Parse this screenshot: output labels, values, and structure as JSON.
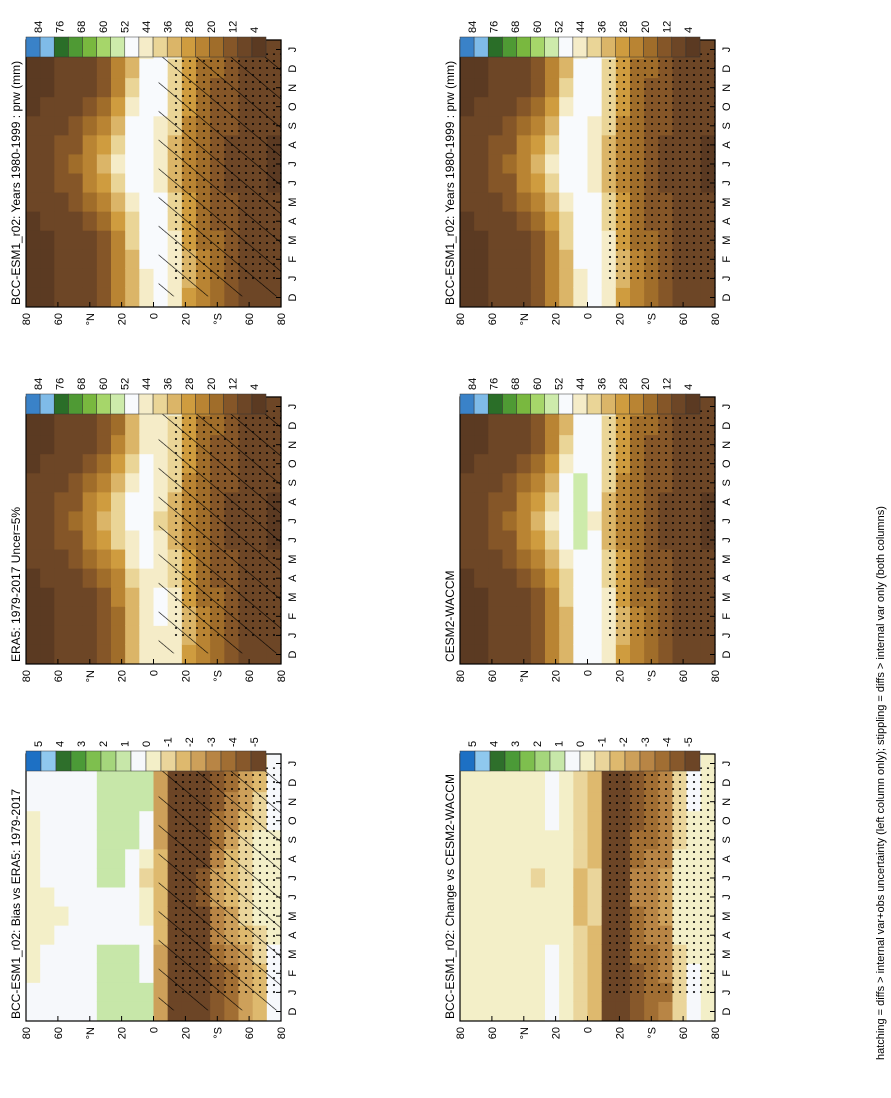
{
  "footer_caption": "hatching = diffs > internal var+obs uncertainty (left column only); stippling = diffs > internal var only (both columns)",
  "colors": {
    "abs_scale": [
      "#3a82c8",
      "#7fbbe8",
      "#2a6e28",
      "#4f9a34",
      "#79b83f",
      "#a6d66a",
      "#cdebab",
      "#f8fafd",
      "#f5ecc8",
      "#ead597",
      "#dbb568",
      "#cf9c3f",
      "#b98433",
      "#a06d2a",
      "#855628",
      "#6d4626",
      "#5b3a22"
    ],
    "diff_scale": [
      "#1d70c4",
      "#8fc8ee",
      "#2e6f2b",
      "#4b9a37",
      "#7ebf4e",
      "#a5d67c",
      "#c7e7a9",
      "#f6f8fb",
      "#f3efc8",
      "#ead59b",
      "#deb96e",
      "#cda05a",
      "#b88545",
      "#a16e33",
      "#87582b",
      "#6c4526"
    ]
  },
  "panels": [
    {
      "id": "model-bcc",
      "title": "BCC-ESM1_r02: Years 1980-1999 : prw (mm)",
      "kind": "abs",
      "hatching": true
    },
    {
      "id": "obs-era5",
      "title": "ERA5: 1979-2017 Uncer=5%",
      "kind": "abs",
      "hatching": true
    },
    {
      "id": "bias-era5",
      "title": "BCC-ESM1_r02: Bias vs ERA5: 1979-2017",
      "kind": "diff",
      "hatching": true
    },
    {
      "id": "model-bcc-right",
      "title": "BCC-ESM1_r02: Years 1980-1999 : prw (mm)",
      "kind": "abs",
      "hatching": false
    },
    {
      "id": "ref-cesm",
      "title": "CESM2-WACCM",
      "kind": "abs",
      "hatching": false
    },
    {
      "id": "change-cesm",
      "title": "BCC-ESM1_r02: Change vs CESM2-WACCM",
      "kind": "diff",
      "hatching": false
    }
  ],
  "chart_data": {
    "type": "heatmap",
    "variable": "prw (mm)",
    "x_ticks": [
      "D",
      "J",
      "F",
      "M",
      "A",
      "M",
      "J",
      "J",
      "A",
      "S",
      "O",
      "N",
      "D",
      "J"
    ],
    "y_ticks": [
      "80",
      "60",
      "°N",
      "20",
      "0",
      "20",
      "°S",
      "60",
      "80"
    ],
    "y_values_deg": [
      80,
      60,
      40,
      20,
      0,
      -20,
      -40,
      -60,
      -80
    ],
    "abs_colorbar": {
      "labels": [
        "84",
        "76",
        "68",
        "60",
        "52",
        "44",
        "36",
        "28",
        "20",
        "12",
        "4"
      ],
      "range": [
        0,
        88
      ]
    },
    "diff_colorbar": {
      "labels": [
        "5",
        "4",
        "3",
        "2",
        "1",
        "0",
        "-1",
        "-2",
        "-3",
        "-4",
        "-5"
      ],
      "range": [
        -5,
        5
      ]
    },
    "months": [
      "D",
      "J",
      "F",
      "M",
      "A",
      "M",
      "J",
      "J",
      "A",
      "S",
      "O",
      "N",
      "D",
      "J"
    ],
    "latitudes": [
      -85,
      -75,
      -65,
      -55,
      -45,
      -35,
      -25,
      -15,
      -5,
      5,
      15,
      25,
      35,
      45,
      55,
      65,
      75,
      85
    ],
    "model_mean_mm": [
      [
        3,
        3,
        3,
        3,
        3,
        3,
        2,
        2,
        2,
        3,
        3,
        3,
        3,
        3
      ],
      [
        5,
        5,
        5,
        5,
        4,
        4,
        4,
        4,
        4,
        4,
        5,
        5,
        5,
        5
      ],
      [
        8,
        8,
        8,
        7,
        7,
        6,
        6,
        6,
        6,
        6,
        7,
        7,
        8,
        8
      ],
      [
        11,
        11,
        11,
        10,
        10,
        9,
        8,
        8,
        8,
        9,
        10,
        10,
        11,
        11
      ],
      [
        14,
        14,
        14,
        14,
        13,
        12,
        11,
        11,
        11,
        12,
        13,
        13,
        14,
        14
      ],
      [
        20,
        20,
        20,
        19,
        18,
        16,
        15,
        15,
        15,
        16,
        17,
        18,
        19,
        20
      ],
      [
        30,
        31,
        31,
        30,
        28,
        26,
        24,
        23,
        23,
        24,
        26,
        28,
        29,
        30
      ],
      [
        42,
        43,
        44,
        43,
        41,
        38,
        35,
        34,
        34,
        36,
        38,
        40,
        41,
        42
      ],
      [
        48,
        49,
        50,
        50,
        49,
        47,
        45,
        44,
        45,
        46,
        47,
        48,
        48,
        48
      ],
      [
        46,
        46,
        47,
        48,
        49,
        50,
        51,
        51,
        51,
        51,
        50,
        48,
        47,
        46
      ],
      [
        34,
        34,
        35,
        37,
        40,
        45,
        49,
        51,
        50,
        47,
        42,
        38,
        35,
        34
      ],
      [
        20,
        20,
        21,
        23,
        27,
        33,
        40,
        43,
        41,
        35,
        28,
        23,
        21,
        20
      ],
      [
        11,
        11,
        12,
        13,
        16,
        22,
        30,
        33,
        30,
        24,
        17,
        13,
        12,
        11
      ],
      [
        7,
        7,
        7,
        8,
        10,
        14,
        20,
        23,
        20,
        15,
        11,
        8,
        7,
        7
      ],
      [
        4,
        4,
        4,
        5,
        6,
        9,
        13,
        15,
        13,
        10,
        7,
        5,
        4,
        4
      ],
      [
        3,
        3,
        3,
        3,
        4,
        6,
        9,
        10,
        9,
        6,
        4,
        3,
        3,
        3
      ],
      [
        2,
        2,
        2,
        2,
        3,
        4,
        6,
        7,
        6,
        4,
        3,
        2,
        2,
        2
      ],
      [
        1,
        1,
        1,
        2,
        2,
        3,
        4,
        5,
        4,
        3,
        2,
        1,
        1,
        1
      ]
    ],
    "bias_mm": [
      [
        0.3,
        0.3,
        0.2,
        0.1,
        0,
        0,
        0,
        0,
        0,
        0,
        0.1,
        0.2,
        0.3,
        0.3
      ],
      [
        -1.5,
        -1.6,
        -1.4,
        -1,
        -0.8,
        -0.5,
        -0.4,
        -0.3,
        -0.4,
        -0.6,
        -0.9,
        -1.2,
        -1.5,
        -1.5
      ],
      [
        -2.5,
        -2.6,
        -2.4,
        -2,
        -1.6,
        -1.2,
        -1,
        -0.9,
        -1,
        -1.3,
        -1.8,
        -2.2,
        -2.5,
        -2.5
      ],
      [
        -3.5,
        -3.8,
        -3.6,
        -3,
        -2.5,
        -2,
        -1.7,
        -1.6,
        -1.8,
        -2.2,
        -2.8,
        -3.3,
        -3.6,
        -3.5
      ],
      [
        -4,
        -4.3,
        -4.2,
        -3.8,
        -3.2,
        -2.8,
        -2.5,
        -2.6,
        -3,
        -3.4,
        -3.8,
        -4,
        -4.1,
        -4
      ],
      [
        -5.5,
        -5.6,
        -5.5,
        -5.2,
        -5,
        -4.8,
        -4.6,
        -4.6,
        -4.9,
        -5.2,
        -5.5,
        -5.6,
        -5.6,
        -5.5
      ],
      [
        -6,
        -6.2,
        -6.1,
        -5.9,
        -5.7,
        -5.6,
        -5.5,
        -5.5,
        -5.8,
        -6,
        -6.2,
        -6.3,
        -6.2,
        -6
      ],
      [
        -5.8,
        -6,
        -5.9,
        -5.6,
        -5.4,
        -5.3,
        -5.2,
        -5.3,
        -5.6,
        -5.9,
        -6,
        -6.1,
        -6,
        -5.8
      ],
      [
        -2,
        -2.2,
        -2.2,
        -2,
        -1.7,
        -1.5,
        -1.4,
        -1.5,
        -1.8,
        -2,
        -2.1,
        -2.1,
        -2.1,
        -2
      ],
      [
        0.8,
        0.7,
        0.6,
        0.5,
        0.4,
        -0.3,
        -0.6,
        -0.7,
        -0.4,
        0.3,
        0.6,
        0.8,
        0.8,
        0.8
      ],
      [
        1.2,
        1.1,
        1,
        0.9,
        0.6,
        0.4,
        0.3,
        0.3,
        0.5,
        0.8,
        1,
        1.2,
        1.2,
        1.2
      ],
      [
        1,
        1,
        0.9,
        0.8,
        0.6,
        0.5,
        0.6,
        0.8,
        0.9,
        1,
        1.1,
        1.1,
        1,
        1
      ],
      [
        0.9,
        0.9,
        0.8,
        0.7,
        0.6,
        0.5,
        0.6,
        0.7,
        0.8,
        0.9,
        1,
        1,
        0.9,
        0.9
      ],
      [
        0.6,
        0.6,
        0.5,
        0.4,
        0.3,
        0.2,
        0.4,
        0.6,
        0.6,
        0.5,
        0.5,
        0.6,
        0.6,
        0.6
      ],
      [
        0.5,
        0.5,
        0.4,
        0.3,
        0.2,
        0.1,
        0.2,
        0.4,
        0.4,
        0.3,
        0.4,
        0.5,
        0.5,
        0.5
      ],
      [
        0.3,
        0.3,
        0.2,
        0.2,
        0.1,
        0,
        0.1,
        0.2,
        0.2,
        0.2,
        0.2,
        0.3,
        0.3,
        0.3
      ],
      [
        0.2,
        0.2,
        0.1,
        0.1,
        0,
        0,
        0,
        0.1,
        0.1,
        0.1,
        0.1,
        0.2,
        0.2,
        0.2
      ],
      [
        0.1,
        0.1,
        0,
        0,
        0,
        0,
        0,
        0,
        0,
        0,
        0,
        0.1,
        0.1,
        0.1
      ]
    ],
    "change_mm": [
      [
        0,
        0,
        0,
        0,
        0,
        0,
        0,
        0,
        0,
        0,
        0,
        0,
        0,
        0
      ],
      [
        0.1,
        0.1,
        0.1,
        0,
        0,
        0,
        0,
        0,
        0,
        0,
        0,
        0.1,
        0.1,
        0.1
      ],
      [
        -0.8,
        -0.9,
        -0.8,
        -0.7,
        -0.6,
        -0.5,
        -0.5,
        -0.5,
        -0.6,
        -0.7,
        -0.8,
        -0.8,
        -0.8,
        -0.8
      ],
      [
        -3.2,
        -3.4,
        -3.3,
        -3,
        -2.8,
        -2.6,
        -2.5,
        -2.5,
        -2.7,
        -3,
        -3.2,
        -3.3,
        -3.3,
        -3.2
      ],
      [
        -3.6,
        -3.8,
        -3.7,
        -3.4,
        -3.2,
        -3,
        -2.9,
        -2.9,
        -3.1,
        -3.4,
        -3.6,
        -3.7,
        -3.7,
        -3.6
      ],
      [
        -4,
        -4.1,
        -4,
        -3.8,
        -3.6,
        -3.4,
        -3.3,
        -3.3,
        -3.5,
        -3.8,
        -4,
        -4.1,
        -4.1,
        -4
      ],
      [
        -6,
        -6.1,
        -6,
        -5.9,
        -5.8,
        -5.7,
        -5.6,
        -5.6,
        -5.8,
        -5.9,
        -6,
        -6.1,
        -6.1,
        -6
      ],
      [
        -6.2,
        -6.3,
        -6.2,
        -6,
        -5.9,
        -5.8,
        -5.7,
        -5.7,
        -5.9,
        -6,
        -6.2,
        -6.3,
        -6.3,
        -6.2
      ],
      [
        -1.5,
        -1.6,
        -1.6,
        -1.5,
        -1.4,
        -1.3,
        -1.2,
        -1.2,
        -1.4,
        -1.5,
        -1.6,
        -1.6,
        -1.6,
        -1.5
      ],
      [
        -1.2,
        -1.1,
        -1,
        -0.9,
        -1,
        -1.4,
        -1.8,
        -1.7,
        -1.3,
        -1,
        -1,
        -1.1,
        -1.2,
        -1.2
      ],
      [
        -0.3,
        -0.3,
        -0.2,
        -0.2,
        -0.3,
        -0.4,
        -0.5,
        -0.5,
        -0.4,
        -0.3,
        -0.3,
        -0.3,
        -0.3,
        -0.3
      ],
      [
        0.2,
        0.2,
        0.1,
        0.1,
        0,
        -0.2,
        -0.5,
        -0.6,
        -0.3,
        0,
        0.1,
        0.2,
        0.2,
        0.2
      ],
      [
        -0.4,
        -0.4,
        -0.3,
        -0.2,
        -0.2,
        -0.3,
        -0.6,
        -0.7,
        -0.5,
        -0.3,
        -0.3,
        -0.4,
        -0.4,
        -0.4
      ],
      [
        -0.3,
        -0.3,
        -0.2,
        -0.2,
        -0.1,
        -0.2,
        -0.5,
        -0.6,
        -0.4,
        -0.2,
        -0.2,
        -0.3,
        -0.3,
        -0.3
      ],
      [
        0,
        0,
        0,
        0,
        0,
        0,
        -0.2,
        -0.3,
        -0.2,
        0,
        0,
        0,
        0,
        0
      ],
      [
        -0.2,
        -0.2,
        -0.1,
        -0.1,
        0,
        0,
        -0.1,
        -0.2,
        -0.1,
        0,
        -0.1,
        -0.2,
        -0.2,
        -0.2
      ],
      [
        -0.4,
        -0.4,
        -0.3,
        -0.2,
        -0.1,
        0,
        0,
        0,
        0,
        -0.1,
        -0.2,
        -0.3,
        -0.4,
        -0.4
      ],
      [
        0,
        0,
        0,
        0,
        0,
        0,
        0,
        0,
        0,
        0,
        0,
        0,
        0,
        0
      ]
    ]
  }
}
